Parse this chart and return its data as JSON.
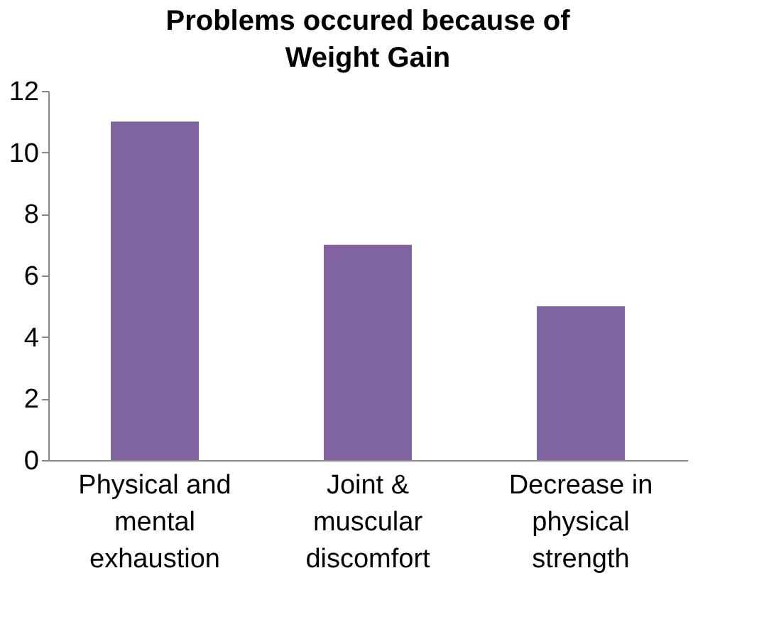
{
  "chart_data": {
    "type": "bar",
    "title": "Problems occured because of Weight Gain",
    "categories": [
      "Physical and mental exhaustion",
      "Joint & muscular discomfort",
      "Decrease in physical strength"
    ],
    "values": [
      11,
      7,
      5
    ],
    "color": "#8064a2",
    "ylim": [
      0,
      12
    ],
    "yticks": [
      0,
      2,
      4,
      6,
      8,
      10,
      12
    ],
    "grid": false
  }
}
